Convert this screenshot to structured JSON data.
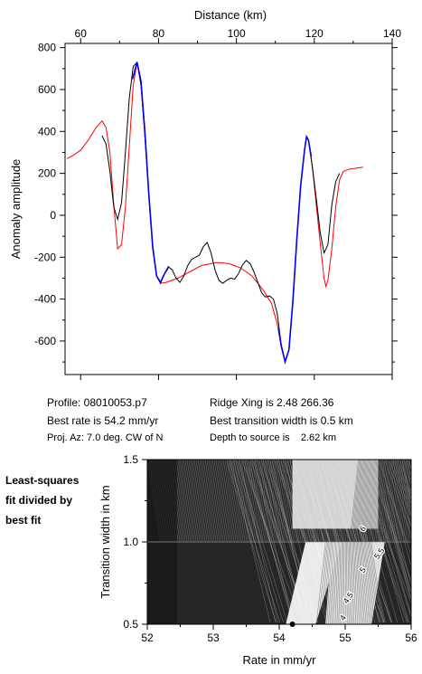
{
  "chart_data": [
    {
      "type": "line",
      "title": "",
      "xlabel": "Distance (km)",
      "ylabel": "Anomaly amplitude",
      "xlim": [
        56,
        140
      ],
      "ylim": [
        -760,
        820
      ],
      "x_ticks": [
        60,
        80,
        100,
        120,
        140
      ],
      "y_ticks": [
        800,
        600,
        400,
        200,
        0,
        -200,
        -400,
        -600
      ],
      "x_axis_position": "top",
      "grid": false,
      "legend": "none",
      "series": [
        {
          "color": "#ff0000",
          "points": [
            [
              56.5,
              270
            ],
            [
              58,
              285
            ],
            [
              60,
              310
            ],
            [
              62,
              360
            ],
            [
              64,
              420
            ],
            [
              65.5,
              450
            ],
            [
              66.5,
              420
            ],
            [
              67.5,
              300
            ],
            [
              68.5,
              50
            ],
            [
              69.5,
              -160
            ],
            [
              70.5,
              -140
            ],
            [
              71.5,
              40
            ],
            [
              72.5,
              330
            ],
            [
              73.5,
              620
            ],
            [
              74.5,
              730
            ],
            [
              75.5,
              640
            ],
            [
              76.5,
              400
            ],
            [
              77.5,
              100
            ],
            [
              78.5,
              -150
            ],
            [
              79.5,
              -290
            ],
            [
              80.5,
              -325
            ],
            [
              82,
              -320
            ],
            [
              85,
              -300
            ],
            [
              88,
              -270
            ],
            [
              91,
              -240
            ],
            [
              95,
              -225
            ],
            [
              98,
              -230
            ],
            [
              101,
              -250
            ],
            [
              104,
              -290
            ],
            [
              107,
              -360
            ],
            [
              109,
              -420
            ],
            [
              110.5,
              -520
            ],
            [
              111.5,
              -630
            ],
            [
              112.5,
              -700
            ],
            [
              113.5,
              -640
            ],
            [
              114.5,
              -410
            ],
            [
              115.5,
              -120
            ],
            [
              116.5,
              140
            ],
            [
              117.5,
              310
            ],
            [
              118,
              375
            ],
            [
              118.5,
              360
            ],
            [
              119.5,
              230
            ],
            [
              120.5,
              50
            ],
            [
              121.5,
              -130
            ],
            [
              122.5,
              -300
            ],
            [
              123,
              -340
            ],
            [
              123.5,
              -310
            ],
            [
              124.5,
              -160
            ],
            [
              125.5,
              40
            ],
            [
              126.5,
              170
            ],
            [
              127.5,
              210
            ],
            [
              129,
              220
            ],
            [
              131,
              225
            ],
            [
              132.5,
              230
            ]
          ]
        },
        {
          "color": "#000000",
          "points": [
            [
              65.5,
              380
            ],
            [
              66.5,
              340
            ],
            [
              67.5,
              210
            ],
            [
              68.5,
              40
            ],
            [
              69.5,
              -20
            ],
            [
              70.5,
              60
            ],
            [
              71.5,
              300
            ],
            [
              72.5,
              560
            ],
            [
              73.5,
              710
            ],
            [
              74.5,
              730
            ],
            [
              75.5,
              620
            ],
            [
              76.5,
              380
            ],
            [
              77.5,
              90
            ],
            [
              78.5,
              -160
            ],
            [
              79.5,
              -290
            ],
            [
              80.5,
              -325
            ],
            [
              81.5,
              -280
            ],
            [
              82.5,
              -245
            ],
            [
              83.5,
              -260
            ],
            [
              84.5,
              -300
            ],
            [
              85.5,
              -320
            ],
            [
              86.5,
              -290
            ],
            [
              87.5,
              -240
            ],
            [
              88.5,
              -210
            ],
            [
              89.5,
              -200
            ],
            [
              90.5,
              -190
            ],
            [
              91.5,
              -150
            ],
            [
              92.5,
              -130
            ],
            [
              93.5,
              -180
            ],
            [
              94.5,
              -260
            ],
            [
              95.5,
              -310
            ],
            [
              96.5,
              -325
            ],
            [
              97.5,
              -310
            ],
            [
              98.5,
              -300
            ],
            [
              99.5,
              -305
            ],
            [
              100.5,
              -280
            ],
            [
              101.5,
              -240
            ],
            [
              102.5,
              -215
            ],
            [
              103.5,
              -230
            ],
            [
              104.5,
              -270
            ],
            [
              105.5,
              -320
            ],
            [
              106.5,
              -370
            ],
            [
              107.5,
              -390
            ],
            [
              108.5,
              -385
            ],
            [
              109.5,
              -400
            ],
            [
              110.5,
              -470
            ],
            [
              111.5,
              -620
            ],
            [
              112.5,
              -700
            ],
            [
              113.5,
              -640
            ],
            [
              114.5,
              -410
            ],
            [
              115.5,
              -120
            ],
            [
              116.5,
              140
            ],
            [
              117.5,
              310
            ],
            [
              118,
              375
            ],
            [
              118.5,
              360
            ],
            [
              119.5,
              230
            ],
            [
              120.5,
              80
            ],
            [
              121.5,
              -80
            ],
            [
              122.5,
              -180
            ],
            [
              123.5,
              -140
            ],
            [
              124.5,
              50
            ],
            [
              125.5,
              160
            ],
            [
              126.5,
              200
            ]
          ]
        },
        {
          "color": "#0000ff",
          "points": [
            [
              73.3,
              650
            ],
            [
              74.5,
              730
            ],
            [
              75.5,
              640
            ],
            [
              76.5,
              400
            ],
            [
              77.5,
              100
            ],
            [
              78.5,
              -150
            ],
            [
              79.5,
              -290
            ],
            [
              80.5,
              -320
            ],
            [
              81.5,
              -280
            ],
            [
              82.5,
              -250
            ],
            [
              110.8,
              -540
            ],
            [
              111.5,
              -620
            ],
            [
              112.5,
              -700
            ],
            [
              113.5,
              -640
            ],
            [
              114.5,
              -410
            ],
            [
              115.5,
              -120
            ],
            [
              116.5,
              140
            ],
            [
              117.5,
              310
            ],
            [
              118,
              375
            ],
            [
              118.5,
              360
            ],
            [
              119.2,
              280
            ]
          ]
        }
      ]
    },
    {
      "type": "heatmap",
      "title": "",
      "xlabel": "Rate in mm/yr",
      "ylabel": "Transition width in km",
      "xlim": [
        52,
        56
      ],
      "ylim": [
        0.5,
        1.5
      ],
      "x_ticks": [
        52,
        53,
        54,
        55,
        56
      ],
      "y_ticks": [
        0.5,
        1.0,
        1.5
      ],
      "x_tick_labels": [
        "52",
        "53",
        "54",
        "55",
        "56"
      ],
      "y_tick_labels": [
        "0.5",
        "1.0",
        "1.5"
      ],
      "contour_labels": [
        "6",
        "5.5",
        "5",
        "4.5",
        "4"
      ],
      "best_fit_point": {
        "x": 54.2,
        "y": 0.5
      }
    }
  ],
  "info": {
    "profile": "Profile: 08010053.p7",
    "best_rate": "Best rate is 54.2 mm/yr",
    "proj_az": "Proj. Az: 7.0 deg. CW of N",
    "ridge_xing": "Ridge Xing is 2.48 266.36",
    "best_transition": "Best transition width is 0.5 km",
    "depth": "Depth to source is    2.62 km"
  },
  "side_label": [
    "Least-squares",
    "fit divided by",
    "best fit"
  ]
}
